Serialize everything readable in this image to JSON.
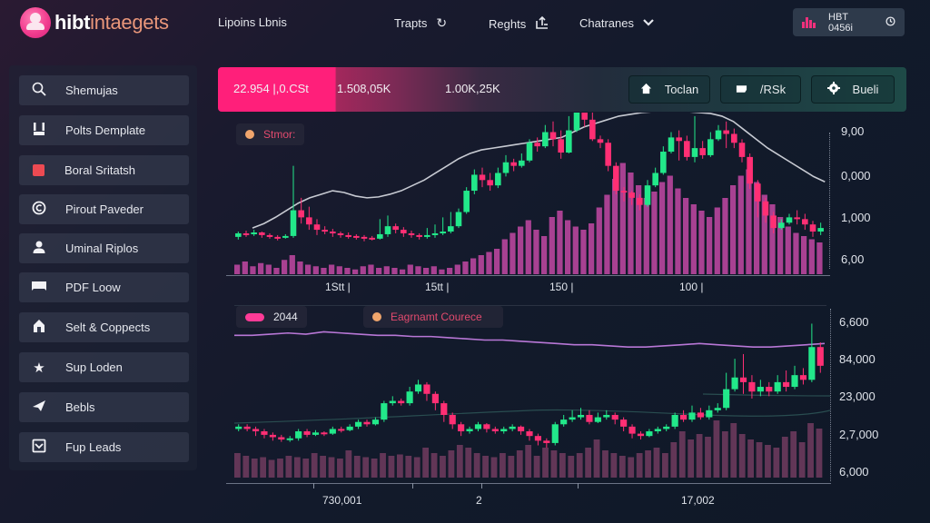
{
  "header": {
    "logo_primary": "hibt",
    "logo_secondary": "intaegets",
    "nav": [
      {
        "label": "Lipoins Lbnis",
        "icon": ""
      },
      {
        "label": "Trapts",
        "icon": "refresh-icon"
      },
      {
        "label": "Reghts",
        "icon": "share-icon"
      },
      {
        "label": "Chatranes",
        "icon": "chevron-down-icon"
      }
    ],
    "account": {
      "label": "HBT 0456i",
      "icon": "bar-chart-icon",
      "trailing_icon": "clock-icon",
      "accent": "#f0307c"
    }
  },
  "sidebar": {
    "items": [
      {
        "label": "Shemujas",
        "icon": "search-icon"
      },
      {
        "label": "Polts Demplate",
        "icon": "template-icon"
      },
      {
        "label": "Boral Sritatsh",
        "icon": "red-square-icon"
      },
      {
        "label": "Pirout Paveder",
        "icon": "copyright-icon"
      },
      {
        "label": "Uminal Riplos",
        "icon": "user-icon"
      },
      {
        "label": "PDF Loow",
        "icon": "folder-icon"
      },
      {
        "label": "Selt & Coppects",
        "icon": "house-icon"
      },
      {
        "label": "Sup Loden",
        "icon": "star-icon"
      },
      {
        "label": "Bebls",
        "icon": "send-icon"
      },
      {
        "label": "Fup Leads",
        "icon": "mail-icon"
      }
    ]
  },
  "stats": {
    "values": [
      "22.954 |,0.CSt",
      "1.508,05K",
      "1.00K,25K"
    ],
    "buttons": [
      {
        "label": "Toclan",
        "icon": "home-icon"
      },
      {
        "label": "/RSk",
        "icon": "ticket-icon"
      },
      {
        "label": "Bueli",
        "icon": "gear-icon"
      }
    ]
  },
  "colors": {
    "up": "#22e88a",
    "down": "#ff2f74",
    "volume": "#c349a4",
    "volume2": "#6b3a5c",
    "accent_pink": "#ff1f7a",
    "ma_line": "#c7cad2",
    "ma_purple": "#b877d6"
  },
  "chart_data": [
    {
      "type": "candlestick",
      "title": "Top price chart",
      "legend": [
        {
          "label": "Stmor:",
          "marker": "orange-dot",
          "color": "#f0a56c"
        }
      ],
      "y_ticks": [
        "9,00",
        "0,000",
        "1,000",
        "6,00"
      ],
      "x_ticks": [
        "1Stt |",
        "15tt |",
        "150 |",
        "100 |"
      ],
      "overlay": "moving-average",
      "ohlc": [
        [
          40,
          44,
          37,
          46,
          36
        ],
        [
          44,
          43,
          40,
          47,
          39
        ],
        [
          43,
          45,
          41,
          48,
          40
        ],
        [
          45,
          42,
          39,
          46,
          37
        ],
        [
          42,
          40,
          38,
          44,
          36
        ],
        [
          40,
          39,
          36,
          42,
          35
        ],
        [
          39,
          41,
          38,
          43,
          37
        ],
        [
          41,
          70,
          39,
          120,
          38
        ],
        [
          70,
          62,
          55,
          84,
          53
        ],
        [
          62,
          54,
          48,
          74,
          46
        ],
        [
          54,
          48,
          42,
          60,
          40
        ],
        [
          48,
          46,
          43,
          52,
          41
        ],
        [
          46,
          44,
          40,
          49,
          39
        ],
        [
          44,
          42,
          39,
          46,
          38
        ],
        [
          42,
          41,
          38,
          45,
          36
        ],
        [
          41,
          40,
          37,
          43,
          35
        ],
        [
          40,
          39,
          35,
          42,
          34
        ],
        [
          39,
          38,
          36,
          41,
          34
        ],
        [
          38,
          43,
          37,
          60,
          36
        ],
        [
          43,
          52,
          40,
          64,
          38
        ],
        [
          52,
          48,
          44,
          55,
          42
        ],
        [
          48,
          44,
          40,
          51,
          39
        ],
        [
          44,
          42,
          39,
          47,
          37
        ],
        [
          42,
          40,
          37,
          44,
          36
        ],
        [
          40,
          42,
          38,
          50,
          37
        ],
        [
          42,
          44,
          39,
          54,
          38
        ],
        [
          44,
          46,
          42,
          62,
          40
        ],
        [
          46,
          52,
          44,
          68,
          42
        ],
        [
          52,
          68,
          50,
          72,
          48
        ],
        [
          68,
          92,
          66,
          96,
          64
        ],
        [
          92,
          110,
          88,
          116,
          86
        ],
        [
          110,
          104,
          96,
          118,
          94
        ],
        [
          104,
          98,
          92,
          112,
          90
        ],
        [
          98,
          112,
          95,
          118,
          93
        ],
        [
          112,
          124,
          108,
          132,
          106
        ],
        [
          124,
          120,
          114,
          128,
          112
        ],
        [
          120,
          126,
          118,
          134,
          116
        ],
        [
          126,
          146,
          124,
          150,
          122
        ],
        [
          146,
          142,
          136,
          152,
          134
        ],
        [
          142,
          158,
          140,
          166,
          138
        ],
        [
          158,
          150,
          142,
          170,
          138
        ],
        [
          150,
          135,
          128,
          160,
          126
        ],
        [
          135,
          160,
          134,
          176,
          130
        ],
        [
          160,
          180,
          158,
          194,
          155
        ],
        [
          180,
          172,
          164,
          186,
          160
        ],
        [
          172,
          150,
          148,
          180,
          140
        ],
        [
          150,
          146,
          140,
          154,
          136
        ],
        [
          146,
          120,
          114,
          150,
          110
        ],
        [
          120,
          92,
          88,
          124,
          84
        ],
        [
          92,
          90,
          80,
          96,
          78
        ],
        [
          90,
          84,
          76,
          92,
          72
        ],
        [
          84,
          76,
          70,
          88,
          68
        ],
        [
          76,
          98,
          74,
          104,
          72
        ],
        [
          98,
          112,
          96,
          118,
          94
        ],
        [
          112,
          136,
          110,
          142,
          108
        ],
        [
          136,
          152,
          134,
          158,
          130
        ],
        [
          152,
          148,
          126,
          160,
          124
        ],
        [
          148,
          130,
          126,
          154,
          122
        ],
        [
          130,
          140,
          124,
          176,
          120
        ],
        [
          140,
          132,
          128,
          148,
          124
        ],
        [
          132,
          150,
          130,
          158,
          128
        ],
        [
          150,
          160,
          148,
          166,
          146
        ],
        [
          160,
          156,
          140,
          170,
          138
        ],
        [
          156,
          146,
          140,
          162,
          136
        ],
        [
          146,
          130,
          124,
          150,
          120
        ],
        [
          130,
          100,
          94,
          134,
          90
        ],
        [
          100,
          80,
          62,
          104,
          58
        ],
        [
          80,
          64,
          56,
          84,
          52
        ],
        [
          64,
          50,
          44,
          68,
          40
        ],
        [
          50,
          56,
          48,
          60,
          46
        ],
        [
          56,
          62,
          54,
          66,
          52
        ],
        [
          62,
          60,
          54,
          70,
          52
        ],
        [
          60,
          54,
          48,
          66,
          46
        ],
        [
          54,
          46,
          40,
          58,
          38
        ],
        [
          46,
          50,
          42,
          56,
          40
        ]
      ],
      "ma": [
        50,
        55,
        62,
        70,
        78,
        84,
        88,
        92,
        90,
        86,
        84,
        85,
        88,
        92,
        98,
        104,
        112,
        120,
        128,
        134,
        138,
        140,
        142,
        144,
        146,
        148,
        150,
        152,
        158,
        164,
        168,
        172,
        176,
        178,
        180,
        181,
        182,
        182,
        181,
        180,
        179,
        176,
        170,
        160,
        150,
        140,
        132,
        124,
        116,
        108,
        102
      ],
      "volume": [
        6,
        8,
        5,
        7,
        6,
        4,
        9,
        12,
        8,
        6,
        5,
        4,
        6,
        5,
        4,
        3,
        5,
        6,
        4,
        5,
        4,
        3,
        6,
        5,
        4,
        5,
        3,
        4,
        6,
        8,
        10,
        12,
        14,
        16,
        22,
        26,
        30,
        34,
        28,
        24,
        36,
        40,
        34,
        30,
        28,
        32,
        42,
        50,
        60,
        70,
        64,
        56,
        48,
        52,
        58,
        62,
        54,
        48,
        44,
        40,
        36,
        42,
        48,
        56,
        62,
        66,
        58,
        50,
        44,
        36,
        30,
        26,
        24,
        22,
        20
      ]
    },
    {
      "type": "candlestick",
      "title": "Bottom price chart",
      "legend": [
        {
          "label": "2044",
          "marker": "pink-pill",
          "color": "#ff3b97"
        },
        {
          "label": "Eagrnamt Courece",
          "marker": "orange-dot",
          "color": "#f0a56c"
        }
      ],
      "y_ticks": [
        "6,600",
        "84,000",
        "23,000",
        "2,7,000",
        "6,000"
      ],
      "x_ticks": [
        "730,001",
        "2",
        "",
        "17,002",
        ""
      ],
      "overlay": "moving-average",
      "ohlc": [
        [
          40,
          42,
          38,
          44,
          36
        ],
        [
          42,
          40,
          38,
          44,
          36
        ],
        [
          40,
          38,
          34,
          42,
          33
        ],
        [
          38,
          35,
          32,
          40,
          30
        ],
        [
          35,
          33,
          30,
          37,
          29
        ],
        [
          33,
          31,
          29,
          35,
          28
        ],
        [
          31,
          32,
          29,
          34,
          28
        ],
        [
          32,
          38,
          30,
          40,
          29
        ],
        [
          38,
          35,
          33,
          40,
          32
        ],
        [
          35,
          37,
          34,
          39,
          33
        ],
        [
          37,
          36,
          34,
          38,
          33
        ],
        [
          36,
          40,
          35,
          42,
          34
        ],
        [
          40,
          39,
          37,
          42,
          36
        ],
        [
          39,
          42,
          38,
          44,
          37
        ],
        [
          42,
          46,
          40,
          48,
          39
        ],
        [
          46,
          44,
          42,
          48,
          41
        ],
        [
          44,
          48,
          43,
          50,
          42
        ],
        [
          48,
          62,
          46,
          64,
          44
        ],
        [
          62,
          64,
          60,
          68,
          58
        ],
        [
          64,
          62,
          60,
          66,
          58
        ],
        [
          62,
          72,
          60,
          76,
          58
        ],
        [
          72,
          78,
          70,
          82,
          68
        ],
        [
          78,
          70,
          64,
          80,
          62
        ],
        [
          70,
          62,
          56,
          72,
          54
        ],
        [
          62,
          52,
          46,
          64,
          44
        ],
        [
          52,
          44,
          40,
          54,
          38
        ],
        [
          44,
          38,
          34,
          46,
          33
        ],
        [
          38,
          40,
          36,
          42,
          35
        ],
        [
          40,
          44,
          38,
          46,
          36
        ],
        [
          44,
          40,
          37,
          45,
          36
        ],
        [
          40,
          38,
          36,
          42,
          35
        ],
        [
          38,
          40,
          36,
          42,
          35
        ],
        [
          40,
          42,
          38,
          44,
          37
        ],
        [
          42,
          38,
          35,
          43,
          33
        ],
        [
          38,
          34,
          30,
          40,
          29
        ],
        [
          34,
          30,
          26,
          36,
          24
        ],
        [
          30,
          28,
          24,
          32,
          22
        ],
        [
          28,
          44,
          26,
          46,
          24
        ],
        [
          44,
          48,
          42,
          52,
          40
        ],
        [
          48,
          50,
          46,
          56,
          44
        ],
        [
          50,
          52,
          48,
          58,
          46
        ],
        [
          52,
          46,
          44,
          56,
          42
        ],
        [
          46,
          50,
          45,
          54,
          44
        ],
        [
          50,
          52,
          48,
          56,
          46
        ],
        [
          52,
          48,
          44,
          54,
          42
        ],
        [
          48,
          42,
          38,
          50,
          36
        ],
        [
          42,
          36,
          32,
          44,
          30
        ],
        [
          36,
          34,
          31,
          38,
          30
        ],
        [
          34,
          38,
          33,
          40,
          32
        ],
        [
          38,
          40,
          36,
          42,
          35
        ],
        [
          40,
          42,
          38,
          44,
          36
        ],
        [
          42,
          52,
          40,
          54,
          38
        ],
        [
          52,
          48,
          46,
          56,
          44
        ],
        [
          48,
          54,
          46,
          60,
          44
        ],
        [
          54,
          50,
          48,
          58,
          46
        ],
        [
          50,
          56,
          48,
          60,
          46
        ],
        [
          56,
          58,
          54,
          62,
          52
        ],
        [
          58,
          74,
          56,
          88,
          54
        ],
        [
          74,
          84,
          72,
          100,
          70
        ],
        [
          84,
          80,
          70,
          104,
          66
        ],
        [
          80,
          72,
          66,
          86,
          62
        ],
        [
          72,
          76,
          68,
          82,
          66
        ],
        [
          76,
          72,
          68,
          80,
          64
        ],
        [
          72,
          80,
          70,
          86,
          68
        ],
        [
          80,
          76,
          72,
          90,
          70
        ],
        [
          76,
          86,
          74,
          94,
          72
        ],
        [
          86,
          82,
          78,
          92,
          76
        ],
        [
          82,
          110,
          80,
          130,
          78
        ],
        [
          110,
          94,
          88,
          114,
          84
        ]
      ],
      "ma": [
        120,
        120,
        121,
        122,
        121,
        123,
        122,
        121,
        120,
        120,
        119,
        119,
        118,
        117,
        116,
        116,
        115,
        114,
        113,
        112,
        112,
        111,
        110,
        110,
        111,
        112,
        113,
        112,
        111,
        110,
        110,
        111,
        112,
        113
      ],
      "volume": [
        18,
        16,
        14,
        15,
        13,
        14,
        16,
        15,
        14,
        18,
        16,
        15,
        14,
        20,
        16,
        15,
        14,
        18,
        16,
        17,
        16,
        15,
        22,
        18,
        16,
        20,
        24,
        22,
        18,
        16,
        15,
        18,
        16,
        20,
        24,
        16,
        22,
        20,
        18,
        16,
        18,
        22,
        28,
        20,
        18,
        16,
        15,
        18,
        20,
        22,
        18,
        26,
        34,
        28,
        32,
        30,
        42,
        34,
        40,
        32,
        28,
        26,
        24,
        22,
        30,
        34,
        26,
        40,
        36
      ]
    }
  ]
}
